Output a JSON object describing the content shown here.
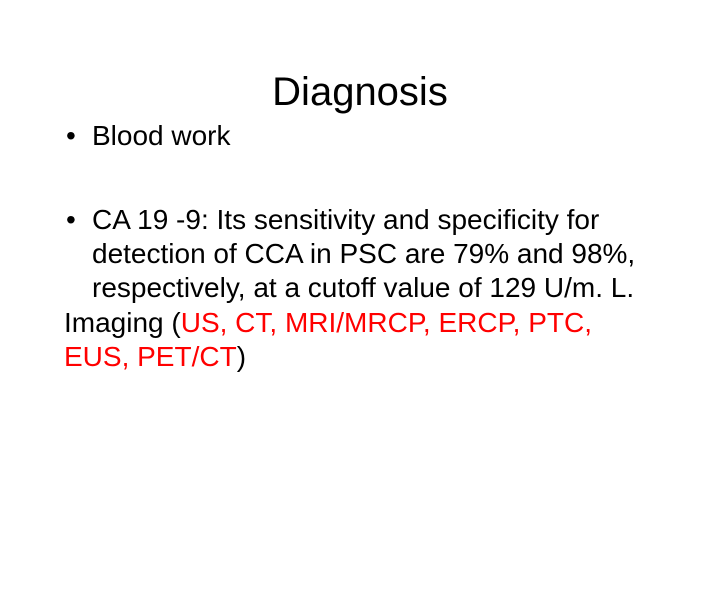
{
  "slide": {
    "title": "Diagnosis",
    "title_fontsize": 40,
    "title_color": "#000000",
    "body_fontsize": 28,
    "body_color": "#000000",
    "red_color": "#ff0000",
    "background_color": "#ffffff",
    "bullets": [
      {
        "dot": "•",
        "text": "Blood work"
      },
      {
        "dot": "•",
        "text": "CA 19 -9: Its sensitivity and specificity for detection of CCA in PSC are 79% and 98%, respectively, at a cutoff value of 129 U/m. L."
      }
    ],
    "imaging_prefix": "Imaging (",
    "imaging_red": "US, CT, MRI/MRCP, ERCP, PTC, EUS, PET/CT",
    "imaging_suffix": ")"
  }
}
